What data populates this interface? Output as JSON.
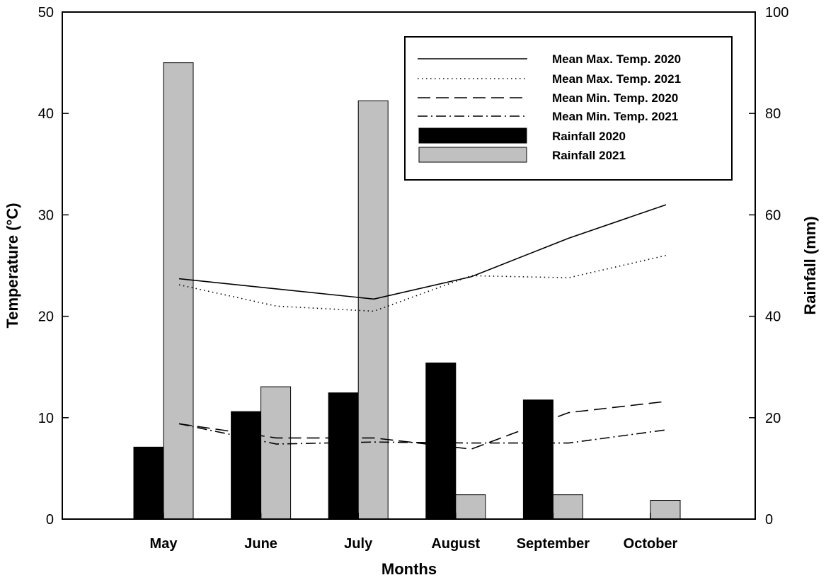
{
  "chart_data": {
    "type": "bar",
    "xlabel": "Months",
    "ylabel_left": "Temperature (°C)",
    "ylabel_right": "Rainfall (mm)",
    "categories": [
      "May",
      "June",
      "July",
      "August",
      "September",
      "October"
    ],
    "ylim_left": [
      0,
      50
    ],
    "yticks_left": [
      "0",
      "10",
      "20",
      "30",
      "40",
      "50"
    ],
    "ylim_right": [
      0,
      100
    ],
    "yticks_right": [
      "0",
      "20",
      "40",
      "60",
      "80",
      "100"
    ],
    "grid": false,
    "legend_position": "top-right",
    "bar_series": [
      {
        "name": "Rainfall 2020",
        "axis": "right",
        "color": "#000000",
        "values": [
          14.2,
          21.2,
          24.9,
          30.8,
          23.5,
          0
        ]
      },
      {
        "name": "Rainfall 2021",
        "axis": "right",
        "color": "#c0c0c0",
        "values": [
          90.0,
          26.1,
          82.5,
          4.8,
          4.8,
          3.7
        ]
      }
    ],
    "line_series": [
      {
        "name": "Mean Max. Temp. 2020",
        "axis": "left",
        "style": "solid",
        "values": [
          23.7,
          22.7,
          21.7,
          23.9,
          27.7,
          31.0
        ]
      },
      {
        "name": "Mean Max. Temp. 2021",
        "axis": "left",
        "style": "dotted",
        "values": [
          23.1,
          21.0,
          20.5,
          24.0,
          23.8,
          26.0
        ]
      },
      {
        "name": "Mean Min. Temp. 2020",
        "axis": "left",
        "style": "dashed",
        "values": [
          9.4,
          8.0,
          8.0,
          6.9,
          10.5,
          11.6
        ]
      },
      {
        "name": "Mean Min. Temp. 2021",
        "axis": "left",
        "style": "dashdot",
        "values": [
          9.4,
          7.4,
          7.6,
          7.5,
          7.5,
          8.8
        ]
      }
    ]
  }
}
